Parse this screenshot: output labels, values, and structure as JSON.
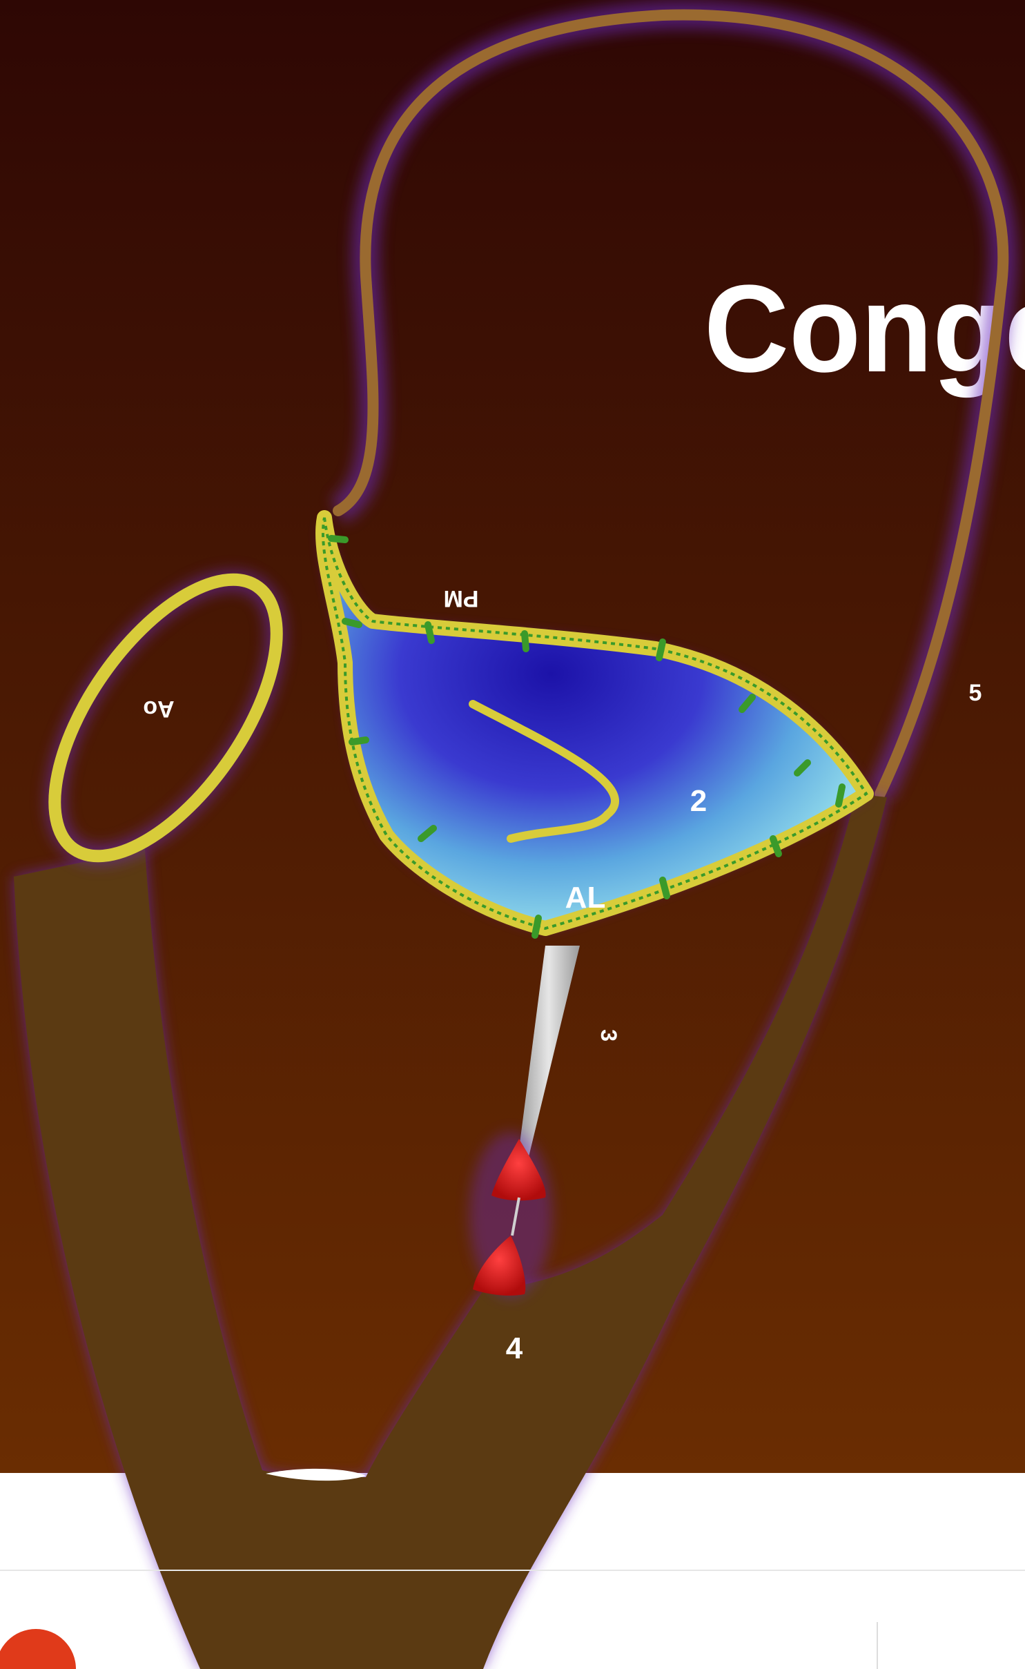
{
  "diagram": {
    "title": "Conge",
    "labels": {
      "ao": "Ao",
      "pm": "PM",
      "two": "2",
      "al": "AL",
      "five": "5",
      "three": "3",
      "four": "4"
    }
  },
  "colors": {
    "background_top": "#2e0704",
    "background_bottom": "#6a2d02",
    "heart_wall": "#5b3a12",
    "wall_stroke": "#9a6a30",
    "annulus": "#d8cc3a",
    "suture": "#3a9a2a",
    "leaflet_light": "#7fd0e6",
    "leaflet_dark": "#2a22b8",
    "papillary": "#d01818",
    "glow": "#7a3ad8"
  }
}
